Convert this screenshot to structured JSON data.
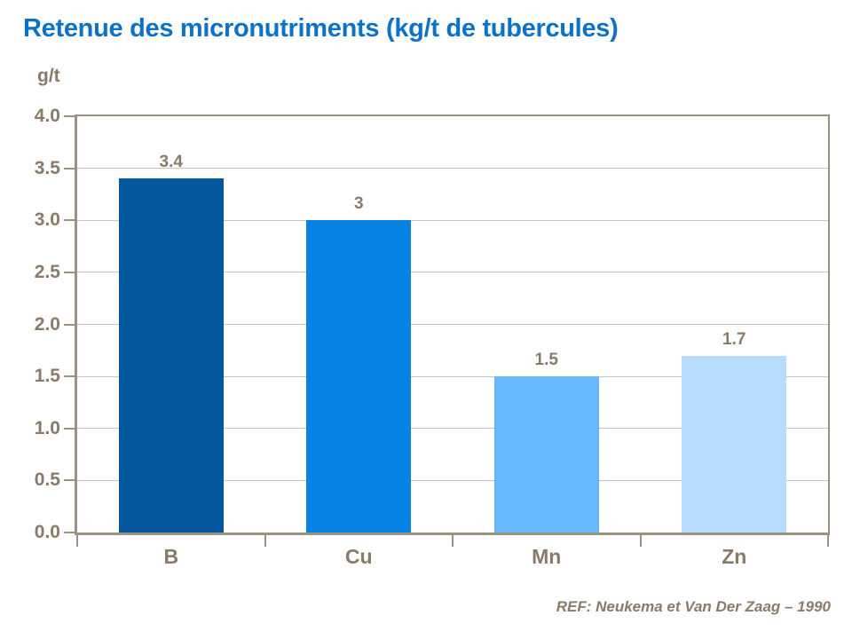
{
  "title": "Retenue des micronutriments (kg/t de tubercules)",
  "title_color": "#0D72C6",
  "footer": {
    "ref_text": "REF: Neukema et Van Der Zaag – 1990"
  },
  "chart_data": {
    "type": "bar",
    "title": "Retenue des micronutriments (kg/t de tubercules)",
    "unit_label": "g/t",
    "categories": [
      "B",
      "Cu",
      "Mn",
      "Zn"
    ],
    "values": [
      3.4,
      3,
      1.5,
      1.7
    ],
    "value_labels": [
      "3.4",
      "3",
      "1.5",
      "1.7"
    ],
    "bar_colors": [
      "#05579E",
      "#0683E4",
      "#67B7FD",
      "#B8DCFD"
    ],
    "ylim": [
      0,
      4
    ],
    "ytick_step": 0.5,
    "ytick_labels": [
      "0.0",
      "0.5",
      "1.0",
      "1.5",
      "2.0",
      "2.5",
      "3.0",
      "3.5",
      "4.0"
    ],
    "grid": true,
    "legend": "none",
    "colors": {
      "text": "#8A7A68",
      "axis": "#9D9181",
      "grid": "#CBC3B9"
    }
  }
}
